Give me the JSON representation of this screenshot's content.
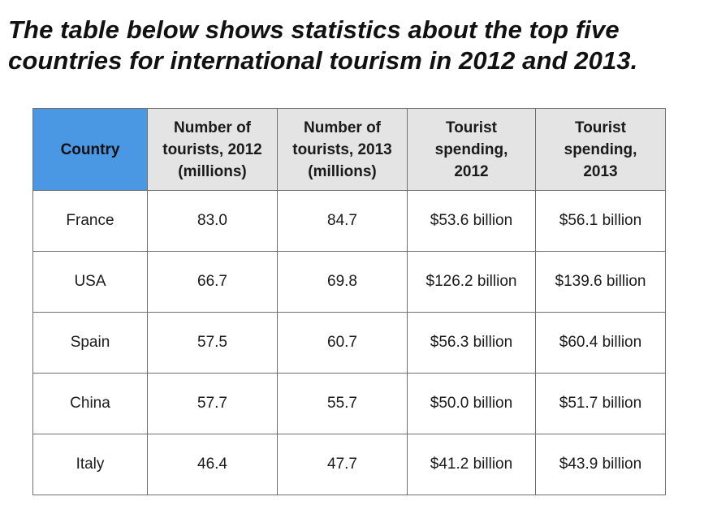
{
  "heading": {
    "line1": "The table below shows statistics about the top five",
    "line2": "countries for international tourism in 2012 and 2013."
  },
  "table": {
    "headers": [
      [
        "Country"
      ],
      [
        "Number of",
        "tourists, 2012",
        "(millions)"
      ],
      [
        "Number of",
        "tourists, 2013",
        "(millions)"
      ],
      [
        "Tourist",
        "spending,",
        "2012"
      ],
      [
        "Tourist",
        "spending,",
        "2013"
      ]
    ],
    "rows": [
      [
        "France",
        "83.0",
        "84.7",
        "$53.6 billion",
        "$56.1 billion"
      ],
      [
        "USA",
        "66.7",
        "69.8",
        "$126.2 billion",
        "$139.6 billion"
      ],
      [
        "Spain",
        "57.5",
        "60.7",
        "$56.3 billion",
        "$60.4 billion"
      ],
      [
        "China",
        "57.7",
        "55.7",
        "$50.0 billion",
        "$51.7 billion"
      ],
      [
        "Italy",
        "46.4",
        "47.7",
        "$41.2 billion",
        "$43.9 billion"
      ]
    ]
  },
  "colors": {
    "header_highlight": "#4a97e4",
    "header_background": "#e4e4e4",
    "border": "#6f6f6f"
  }
}
